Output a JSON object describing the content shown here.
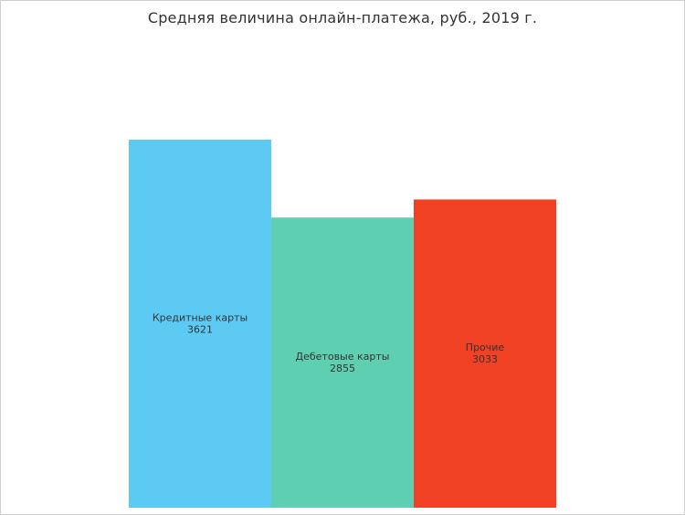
{
  "chart_data": {
    "type": "bar",
    "title": "Средняя величина онлайн-платежа, руб., 2019 г.",
    "categories": [
      "Кредитные карты",
      "Дебетовые карты",
      "Прочие"
    ],
    "values": [
      3621,
      2855,
      3033
    ],
    "value_labels": [
      "3621",
      "2855",
      "3033"
    ],
    "colors": [
      "#5dcaf3",
      "#5ecfb1",
      "#f04124"
    ],
    "xlabel": "",
    "ylabel": "",
    "ylim": [
      0,
      3621
    ],
    "grid": false,
    "legend": "none"
  }
}
